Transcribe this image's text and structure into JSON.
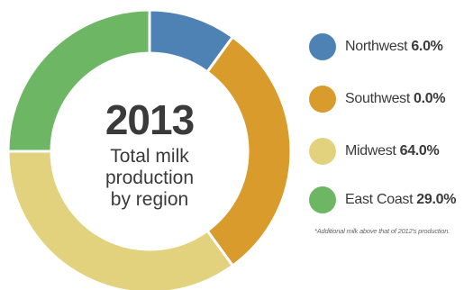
{
  "center": {
    "year": "2013",
    "subtitle_line1": "Total milk",
    "subtitle_line2": "production",
    "subtitle_line3": "by region"
  },
  "footnote": "*Additional milk above that of 2012's production.",
  "chart_data": {
    "type": "pie",
    "style": "donut",
    "title": "",
    "start": "top",
    "direction": "clockwise",
    "legend_position": "right",
    "slices": [
      {
        "label": "Northwest",
        "value_text": "6.0%",
        "value": 6.0,
        "arc_share": 0.1,
        "color": "#4e82b4"
      },
      {
        "label": "Southwest",
        "value_text": "0.0%",
        "value": 0.0,
        "arc_share": 0.3,
        "color": "#d99b2b"
      },
      {
        "label": "Midwest",
        "value_text": "64.0%",
        "value": 64.0,
        "arc_share": 0.35,
        "color": "#e3d27d"
      },
      {
        "label": "East Coast",
        "value_text": "29.0%",
        "value": 29.0,
        "arc_share": 0.25,
        "color": "#6db663"
      }
    ]
  }
}
